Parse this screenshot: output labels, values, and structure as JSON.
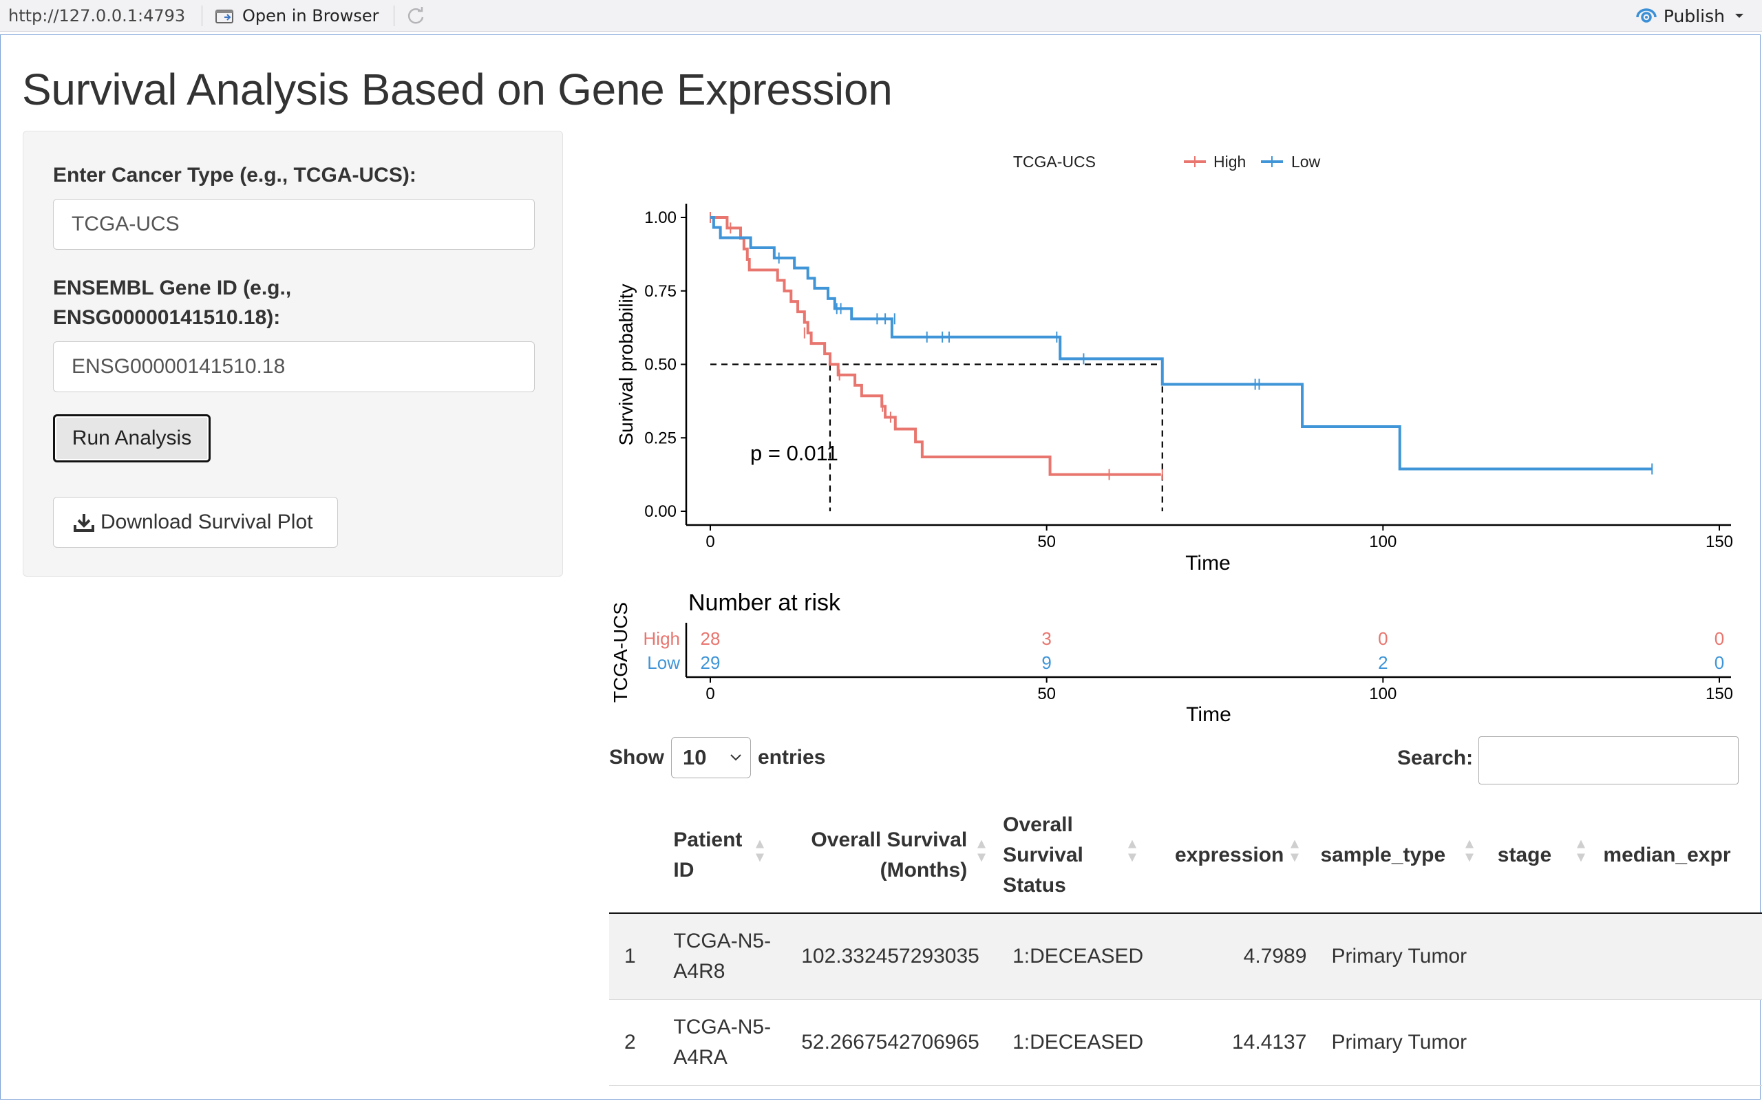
{
  "toolbar": {
    "url": "http://127.0.0.1:4793",
    "open_in_browser": "Open in Browser",
    "publish": "Publish"
  },
  "app": {
    "title": "Survival Analysis Based on Gene Expression",
    "cancer_type_label": "Enter Cancer Type (e.g., TCGA-UCS):",
    "cancer_type_value": "TCGA-UCS",
    "gene_id_label_line1": "ENSEMBL Gene ID (e.g.,",
    "gene_id_label_line2": "ENSG00000141510.18):",
    "gene_id_value": "ENSG00000141510.18",
    "run_button": "Run Analysis",
    "download_button": "Download Survival Plot"
  },
  "chart_data": {
    "type": "line",
    "legend_title": "TCGA-UCS",
    "legend_position": "top",
    "xlabel": "Time",
    "ylabel": "Survival probability",
    "xlim": [
      0,
      150
    ],
    "ylim": [
      0,
      1
    ],
    "x_ticks": [
      "0",
      "50",
      "100",
      "150"
    ],
    "y_ticks": [
      "0.00",
      "0.25",
      "0.50",
      "0.75",
      "1.00"
    ],
    "p_value_label": "p = 0.011",
    "median_line_y": 0.5,
    "median_survival": {
      "High": 17.8,
      "Low": 67.2
    },
    "series": [
      {
        "name": "High",
        "color": "#E8756E",
        "steps": [
          [
            0,
            1.0
          ],
          [
            2.5,
            0.964
          ],
          [
            4.5,
            0.929
          ],
          [
            5,
            0.893
          ],
          [
            5.5,
            0.857
          ],
          [
            5.8,
            0.821
          ],
          [
            10,
            0.786
          ],
          [
            11,
            0.75
          ],
          [
            12,
            0.714
          ],
          [
            13,
            0.679
          ],
          [
            14,
            0.643
          ],
          [
            14.5,
            0.607
          ],
          [
            15,
            0.571
          ],
          [
            17,
            0.536
          ],
          [
            17.8,
            0.5
          ],
          [
            19,
            0.464
          ],
          [
            21.5,
            0.429
          ],
          [
            22.5,
            0.393
          ],
          [
            25.5,
            0.357
          ],
          [
            26,
            0.32
          ],
          [
            27.5,
            0.28
          ],
          [
            30.5,
            0.236
          ],
          [
            31.5,
            0.185
          ],
          [
            50.5,
            0.125
          ],
          [
            67,
            0.125
          ]
        ],
        "censor": [
          [
            0,
            1.0
          ],
          [
            3,
            0.964
          ],
          [
            14,
            0.607
          ],
          [
            19.2,
            0.464
          ],
          [
            25.6,
            0.357
          ],
          [
            26.8,
            0.32
          ],
          [
            59.3,
            0.125
          ],
          [
            67.2,
            0.125
          ]
        ]
      },
      {
        "name": "Low",
        "color": "#3F95D7",
        "steps": [
          [
            0,
            1.0
          ],
          [
            0.5,
            0.966
          ],
          [
            1.5,
            0.931
          ],
          [
            6,
            0.897
          ],
          [
            9.5,
            0.862
          ],
          [
            12.5,
            0.828
          ],
          [
            14.5,
            0.793
          ],
          [
            15.5,
            0.759
          ],
          [
            17.5,
            0.724
          ],
          [
            18.5,
            0.69
          ],
          [
            21,
            0.655
          ],
          [
            27,
            0.593
          ],
          [
            52,
            0.519
          ],
          [
            67.2,
            0.432
          ],
          [
            88,
            0.288
          ],
          [
            102.5,
            0.144
          ],
          [
            140,
            0.144
          ]
        ],
        "censor": [
          [
            10.2,
            0.862
          ],
          [
            18.8,
            0.69
          ],
          [
            19.4,
            0.69
          ],
          [
            24.8,
            0.655
          ],
          [
            26,
            0.655
          ],
          [
            27.4,
            0.655
          ],
          [
            32.2,
            0.593
          ],
          [
            34.5,
            0.593
          ],
          [
            35.5,
            0.593
          ],
          [
            51.5,
            0.593
          ],
          [
            55.5,
            0.519
          ],
          [
            81,
            0.432
          ],
          [
            81.6,
            0.432
          ],
          [
            140,
            0.144
          ]
        ]
      }
    ]
  },
  "risk_table": {
    "title": "Number at risk",
    "ylabel": "TCGA-UCS",
    "xlabel": "Time",
    "x_ticks": [
      "0",
      "50",
      "100",
      "150"
    ],
    "rows": [
      {
        "name": "High",
        "color": "#E8756E",
        "values": [
          "28",
          "3",
          "0",
          "0"
        ]
      },
      {
        "name": "Low",
        "color": "#3F95D7",
        "values": [
          "29",
          "9",
          "2",
          "0"
        ]
      }
    ]
  },
  "datatable": {
    "show": "Show",
    "entries_value": "10",
    "entries": "entries",
    "search_label": "Search:",
    "columns": [
      "Patient ID",
      "Overall Survival (Months)",
      "Overall Survival Status",
      "expression",
      "sample_type",
      "stage",
      "median_expr"
    ],
    "rows": [
      {
        "index": "1",
        "patient_id": "TCGA-N5-A4R8",
        "os_months": "102.332457293035",
        "os_status": "1:DECEASED",
        "expression": "4.7989",
        "sample_type": "Primary Tumor",
        "stage": "",
        "median_expr": ""
      },
      {
        "index": "2",
        "patient_id": "TCGA-N5-A4RA",
        "os_months": "52.2667542706965",
        "os_status": "1:DECEASED",
        "expression": "14.4137",
        "sample_type": "Primary Tumor",
        "stage": "",
        "median_expr": ""
      }
    ]
  }
}
